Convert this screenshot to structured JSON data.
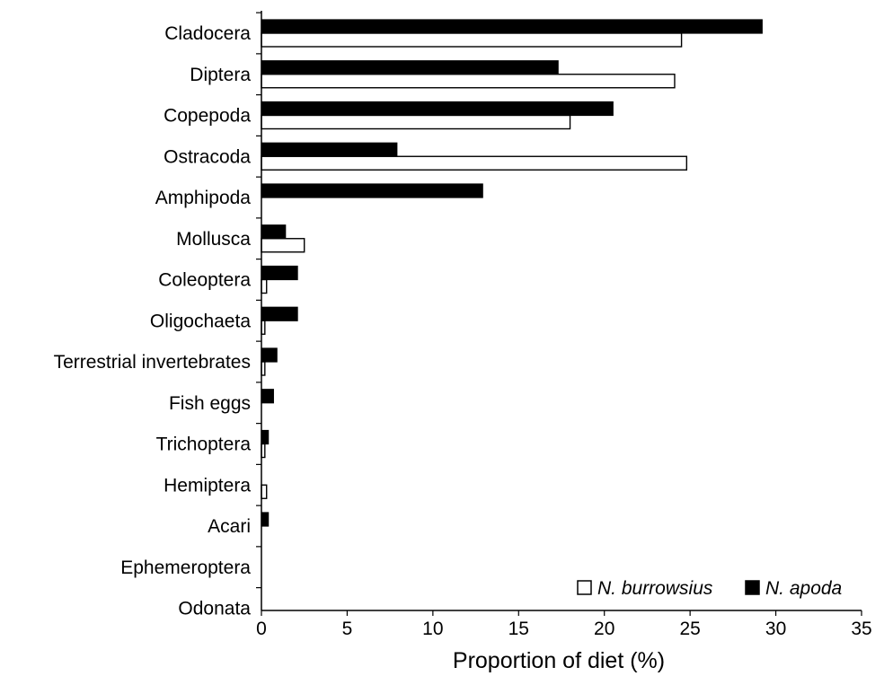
{
  "chart_data": {
    "type": "bar",
    "orientation": "horizontal",
    "categories": [
      "Cladocera",
      "Diptera",
      "Copepoda",
      "Ostracoda",
      "Amphipoda",
      "Mollusca",
      "Coleoptera",
      "Oligochaeta",
      "Terrestrial invertebrates",
      "Fish eggs",
      "Trichoptera",
      "Hemiptera",
      "Acari",
      "Ephemeroptera",
      "Odonata"
    ],
    "series": [
      {
        "name": "N. apoda",
        "color": "#000000",
        "values": [
          29.2,
          17.3,
          20.5,
          7.9,
          12.9,
          1.4,
          2.1,
          2.1,
          0.9,
          0.7,
          0.4,
          0,
          0.4,
          0,
          0
        ]
      },
      {
        "name": "N. burrowsius",
        "color": "#ffffff",
        "values": [
          24.5,
          24.1,
          18.0,
          24.8,
          0,
          2.5,
          0.3,
          0.2,
          0.2,
          0,
          0.2,
          0.3,
          0,
          0,
          0
        ]
      }
    ],
    "xlabel": "Proportion of diet (%)",
    "ylabel": "",
    "xlim": [
      0,
      35
    ],
    "xticks": [
      "0",
      "5",
      "10",
      "15",
      "20",
      "25",
      "30",
      "35"
    ],
    "legend": {
      "position": "bottom-right",
      "entries": [
        "N. burrowsius",
        "N. apoda"
      ]
    },
    "grid": false
  }
}
